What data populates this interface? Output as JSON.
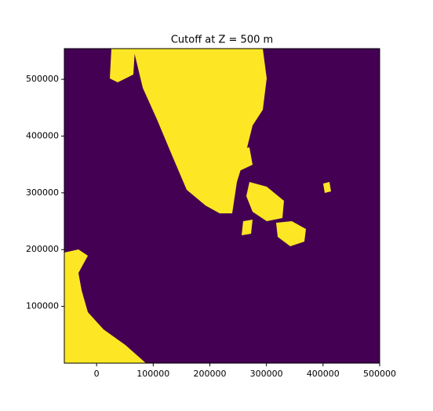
{
  "chart_data": {
    "type": "image",
    "title": "Cutoff at Z = 500 m",
    "xlim": [
      -57000,
      500000
    ],
    "xticks": [
      0,
      100000,
      200000,
      300000,
      400000,
      500000
    ],
    "ylim": [
      0,
      554000
    ],
    "yticks": [
      100000,
      200000,
      300000,
      400000,
      500000
    ],
    "colors": [
      "#440154",
      "#fde725"
    ]
  }
}
